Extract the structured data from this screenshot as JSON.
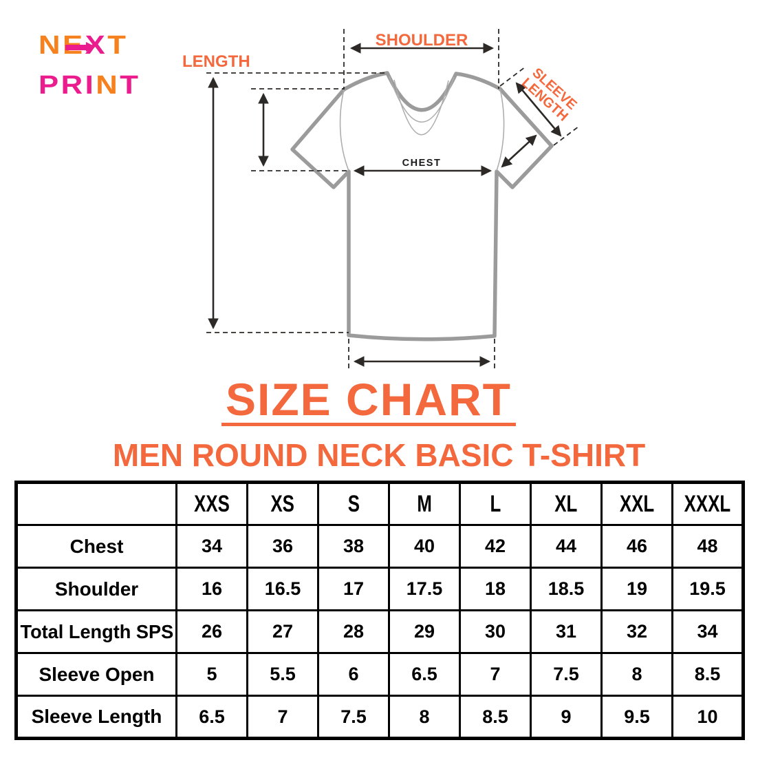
{
  "colors": {
    "orange": "#f3683c",
    "logo_orange": "#f5821f",
    "magenta": "#ea1c8e",
    "shirt_gray": "#9b9b9b",
    "line_dark": "#2d2926",
    "table_border": "#000000",
    "background": "#ffffff"
  },
  "logo": {
    "line1": [
      {
        "ch": "N",
        "color": "logo_orange"
      },
      {
        "ch": "E",
        "color": "logo_orange"
      },
      {
        "ch": "X",
        "color": "magenta"
      },
      {
        "ch": "T",
        "color": "logo_orange"
      }
    ],
    "line2": [
      {
        "ch": "P",
        "color": "magenta"
      },
      {
        "ch": "R",
        "color": "magenta"
      },
      {
        "ch": "I",
        "color": "magenta"
      },
      {
        "ch": "N",
        "color": "logo_orange"
      },
      {
        "ch": "T",
        "color": "magenta"
      }
    ]
  },
  "diagram": {
    "labels": {
      "length": "LENGTH",
      "shoulder": "SHOULDER",
      "sleeve_line1": "SLEEVE",
      "sleeve_line2": "LENGTH",
      "chest": "CHEST"
    }
  },
  "title": {
    "main": "SIZE CHART",
    "subtitle": "MEN ROUND NECK BASIC T-SHIRT"
  },
  "table": {
    "sizes": [
      "XXS",
      "XS",
      "S",
      "M",
      "L",
      "XL",
      "XXL",
      "XXXL"
    ],
    "rows": [
      {
        "label": "Chest",
        "values": [
          "34",
          "36",
          "38",
          "40",
          "42",
          "44",
          "46",
          "48"
        ]
      },
      {
        "label": "Shoulder",
        "values": [
          "16",
          "16.5",
          "17",
          "17.5",
          "18",
          "18.5",
          "19",
          "19.5"
        ]
      },
      {
        "label": "Total Length SPS",
        "values": [
          "26",
          "27",
          "28",
          "29",
          "30",
          "31",
          "32",
          "34"
        ]
      },
      {
        "label": "Sleeve Open",
        "values": [
          "5",
          "5.5",
          "6",
          "6.5",
          "7",
          "7.5",
          "8",
          "8.5"
        ]
      },
      {
        "label": "Sleeve Length",
        "values": [
          "6.5",
          "7",
          "7.5",
          "8",
          "8.5",
          "9",
          "9.5",
          "10"
        ]
      }
    ]
  },
  "chart_data": {
    "type": "table",
    "title": "SIZE CHART",
    "subtitle": "MEN ROUND NECK BASIC T-SHIRT",
    "columns": [
      "XXS",
      "XS",
      "S",
      "M",
      "L",
      "XL",
      "XXL",
      "XXXL"
    ],
    "series": [
      {
        "name": "Chest",
        "values": [
          34,
          36,
          38,
          40,
          42,
          44,
          46,
          48
        ]
      },
      {
        "name": "Shoulder",
        "values": [
          16,
          16.5,
          17,
          17.5,
          18,
          18.5,
          19,
          19.5
        ]
      },
      {
        "name": "Total Length SPS",
        "values": [
          26,
          27,
          28,
          29,
          30,
          31,
          32,
          34
        ]
      },
      {
        "name": "Sleeve Open",
        "values": [
          5,
          5.5,
          6,
          6.5,
          7,
          7.5,
          8,
          8.5
        ]
      },
      {
        "name": "Sleeve Length",
        "values": [
          6.5,
          7,
          7.5,
          8,
          8.5,
          9,
          9.5,
          10
        ]
      }
    ]
  }
}
